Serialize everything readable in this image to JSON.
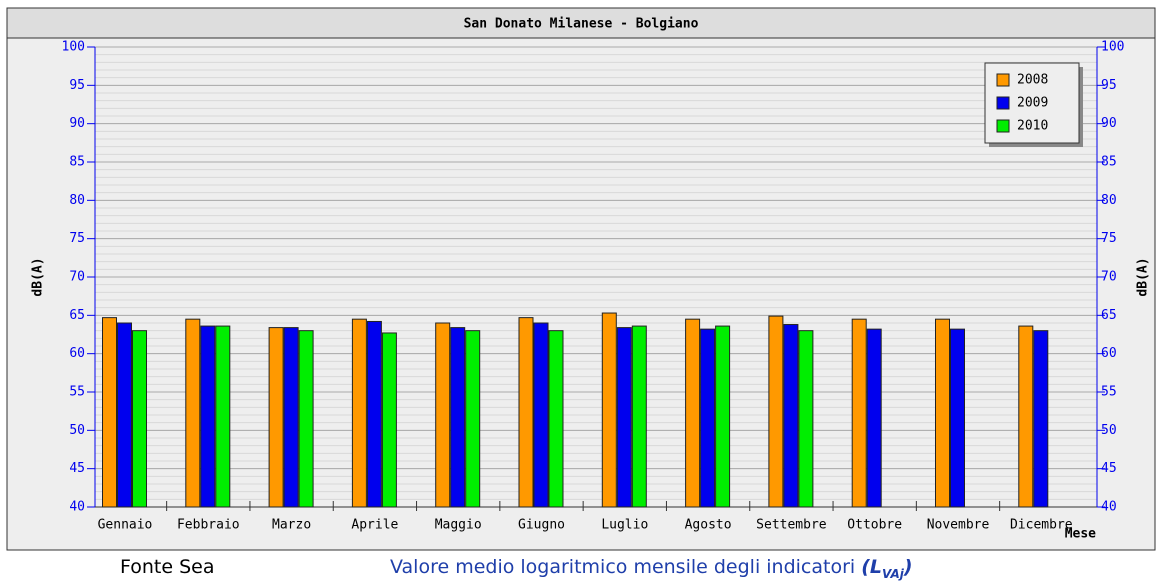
{
  "chart_data": {
    "type": "bar",
    "title": "San Donato Milanese - Bolgiano",
    "categories": [
      "Gennaio",
      "Febbraio",
      "Marzo",
      "Aprile",
      "Maggio",
      "Giugno",
      "Luglio",
      "Agosto",
      "Settembre",
      "Ottobre",
      "Novembre",
      "Dicembre"
    ],
    "series": [
      {
        "name": "2008",
        "color": "#ff9900",
        "values": [
          64.7,
          64.5,
          63.4,
          64.5,
          64.0,
          64.7,
          65.3,
          64.5,
          64.9,
          64.5,
          64.5,
          63.6
        ]
      },
      {
        "name": "2009",
        "color": "#0000ee",
        "values": [
          64.0,
          63.6,
          63.4,
          64.2,
          63.4,
          64.0,
          63.4,
          63.2,
          63.8,
          63.2,
          63.2,
          63.0
        ]
      },
      {
        "name": "2010",
        "color": "#00ee00",
        "values": [
          63.0,
          63.6,
          63.0,
          62.7,
          63.0,
          63.0,
          63.6,
          63.6,
          63.0,
          null,
          null,
          null
        ]
      }
    ],
    "y_label": "dB(A)",
    "y2_label": "dB(A)",
    "x_label": "Mese",
    "ylim": [
      40,
      100
    ],
    "yticks": [
      40,
      45,
      50,
      55,
      60,
      65,
      70,
      75,
      80,
      85,
      90,
      95,
      100
    ],
    "grid": true,
    "legend": "top-right"
  },
  "caption": {
    "source": "Fonte Sea",
    "text": "Valore medio logaritmico mensile degli indicatori",
    "symbol": "(L",
    "subscript": "VAj",
    "close": ")"
  }
}
